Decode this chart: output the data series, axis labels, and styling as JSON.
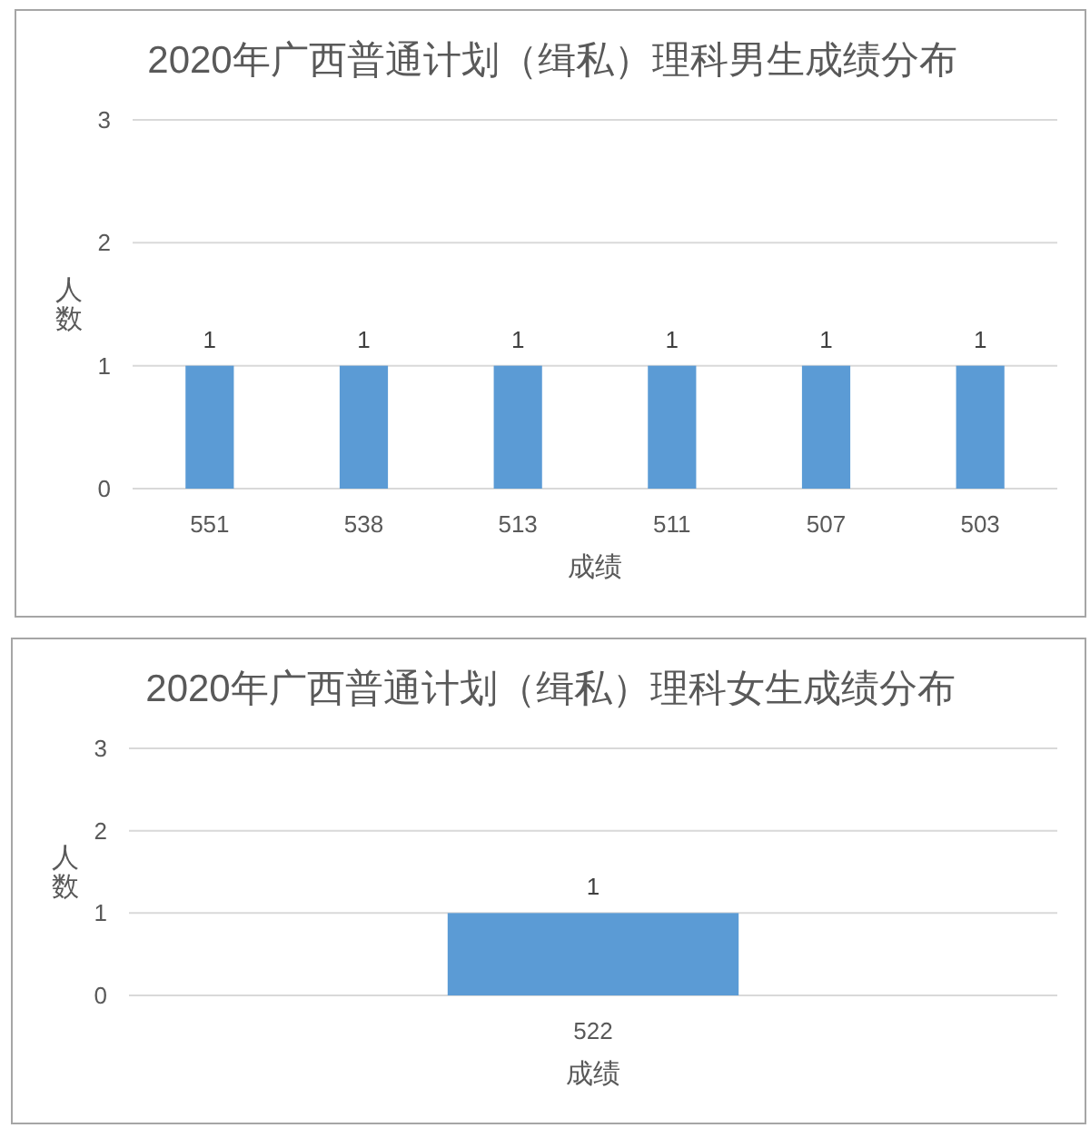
{
  "chart_data": [
    {
      "type": "bar",
      "title": "2020年广西普通计划（缉私）理科男生成绩分布",
      "xlabel": "成绩",
      "ylabel": "人数",
      "categories": [
        "551",
        "538",
        "513",
        "511",
        "507",
        "503"
      ],
      "values": [
        1,
        1,
        1,
        1,
        1,
        1
      ],
      "color": "#5b9bd5",
      "ylim": [
        0,
        3
      ],
      "yticks": [
        0,
        1,
        2,
        3
      ],
      "grid": "y",
      "data_labels": true
    },
    {
      "type": "bar",
      "title": "2020年广西普通计划（缉私）理科女生成绩分布",
      "xlabel": "成绩",
      "ylabel": "人数",
      "categories": [
        "522"
      ],
      "values": [
        1
      ],
      "color": "#5b9bd5",
      "ylim": [
        0,
        3
      ],
      "yticks": [
        0,
        1,
        2,
        3
      ],
      "grid": "y",
      "data_labels": true
    }
  ]
}
